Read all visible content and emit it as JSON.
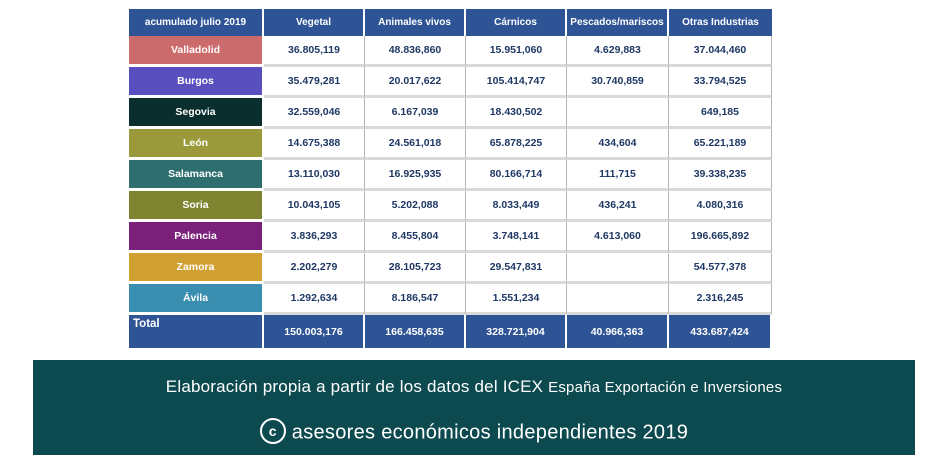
{
  "table": {
    "header": [
      "acumulado julio 2019",
      "Vegetal",
      "Animales vivos",
      "Cárnicos",
      "Pescados/mariscos",
      "Otras Industrias"
    ],
    "rows": [
      {
        "region": "Valladolid",
        "color": "#cc6b6b",
        "values": [
          "36.805,119",
          "48.836,860",
          "15.951,060",
          "4.629,883",
          "37.044,460"
        ]
      },
      {
        "region": "Burgos",
        "color": "#5a4fbf",
        "values": [
          "35.479,281",
          "20.017,622",
          "105.414,747",
          "30.740,859",
          "33.794,525"
        ]
      },
      {
        "region": "Segovia",
        "color": "#0a2e2e",
        "values": [
          "32.559,046",
          "6.167,039",
          "18.430,502",
          "",
          "649,185"
        ]
      },
      {
        "region": "León",
        "color": "#9a9a3a",
        "values": [
          "14.675,388",
          "24.561,018",
          "65.878,225",
          "434,604",
          "65.221,189"
        ]
      },
      {
        "region": "Salamanca",
        "color": "#2f6e6e",
        "values": [
          "13.110,030",
          "16.925,935",
          "80.166,714",
          "111,715",
          "39.338,235"
        ]
      },
      {
        "region": "Soria",
        "color": "#7e8430",
        "values": [
          "10.043,105",
          "5.202,088",
          "8.033,449",
          "436,241",
          "4.080,316"
        ]
      },
      {
        "region": "Palencia",
        "color": "#7a1f7a",
        "values": [
          "3.836,293",
          "8.455,804",
          "3.748,141",
          "4.613,060",
          "196.665,892"
        ]
      },
      {
        "region": "Zamora",
        "color": "#d0a032",
        "values": [
          "2.202,279",
          "28.105,723",
          "29.547,831",
          "",
          "54.577,378"
        ]
      },
      {
        "region": "Ávila",
        "color": "#3a8fb0",
        "values": [
          "1.292,634",
          "8.186,547",
          "1.551,234",
          "",
          "2.316,245"
        ]
      }
    ],
    "total": {
      "label": "Total",
      "values": [
        "150.003,176",
        "166.458,635",
        "328.721,904",
        "40.966,363",
        "433.687,424"
      ]
    }
  },
  "footer": {
    "line1_main": "Elaboración propia a partir de los datos del ICEX",
    "line1_small": "España Exportación e Inversiones",
    "copyright_symbol": "c",
    "line2": "asesores económicos independientes 2019"
  }
}
